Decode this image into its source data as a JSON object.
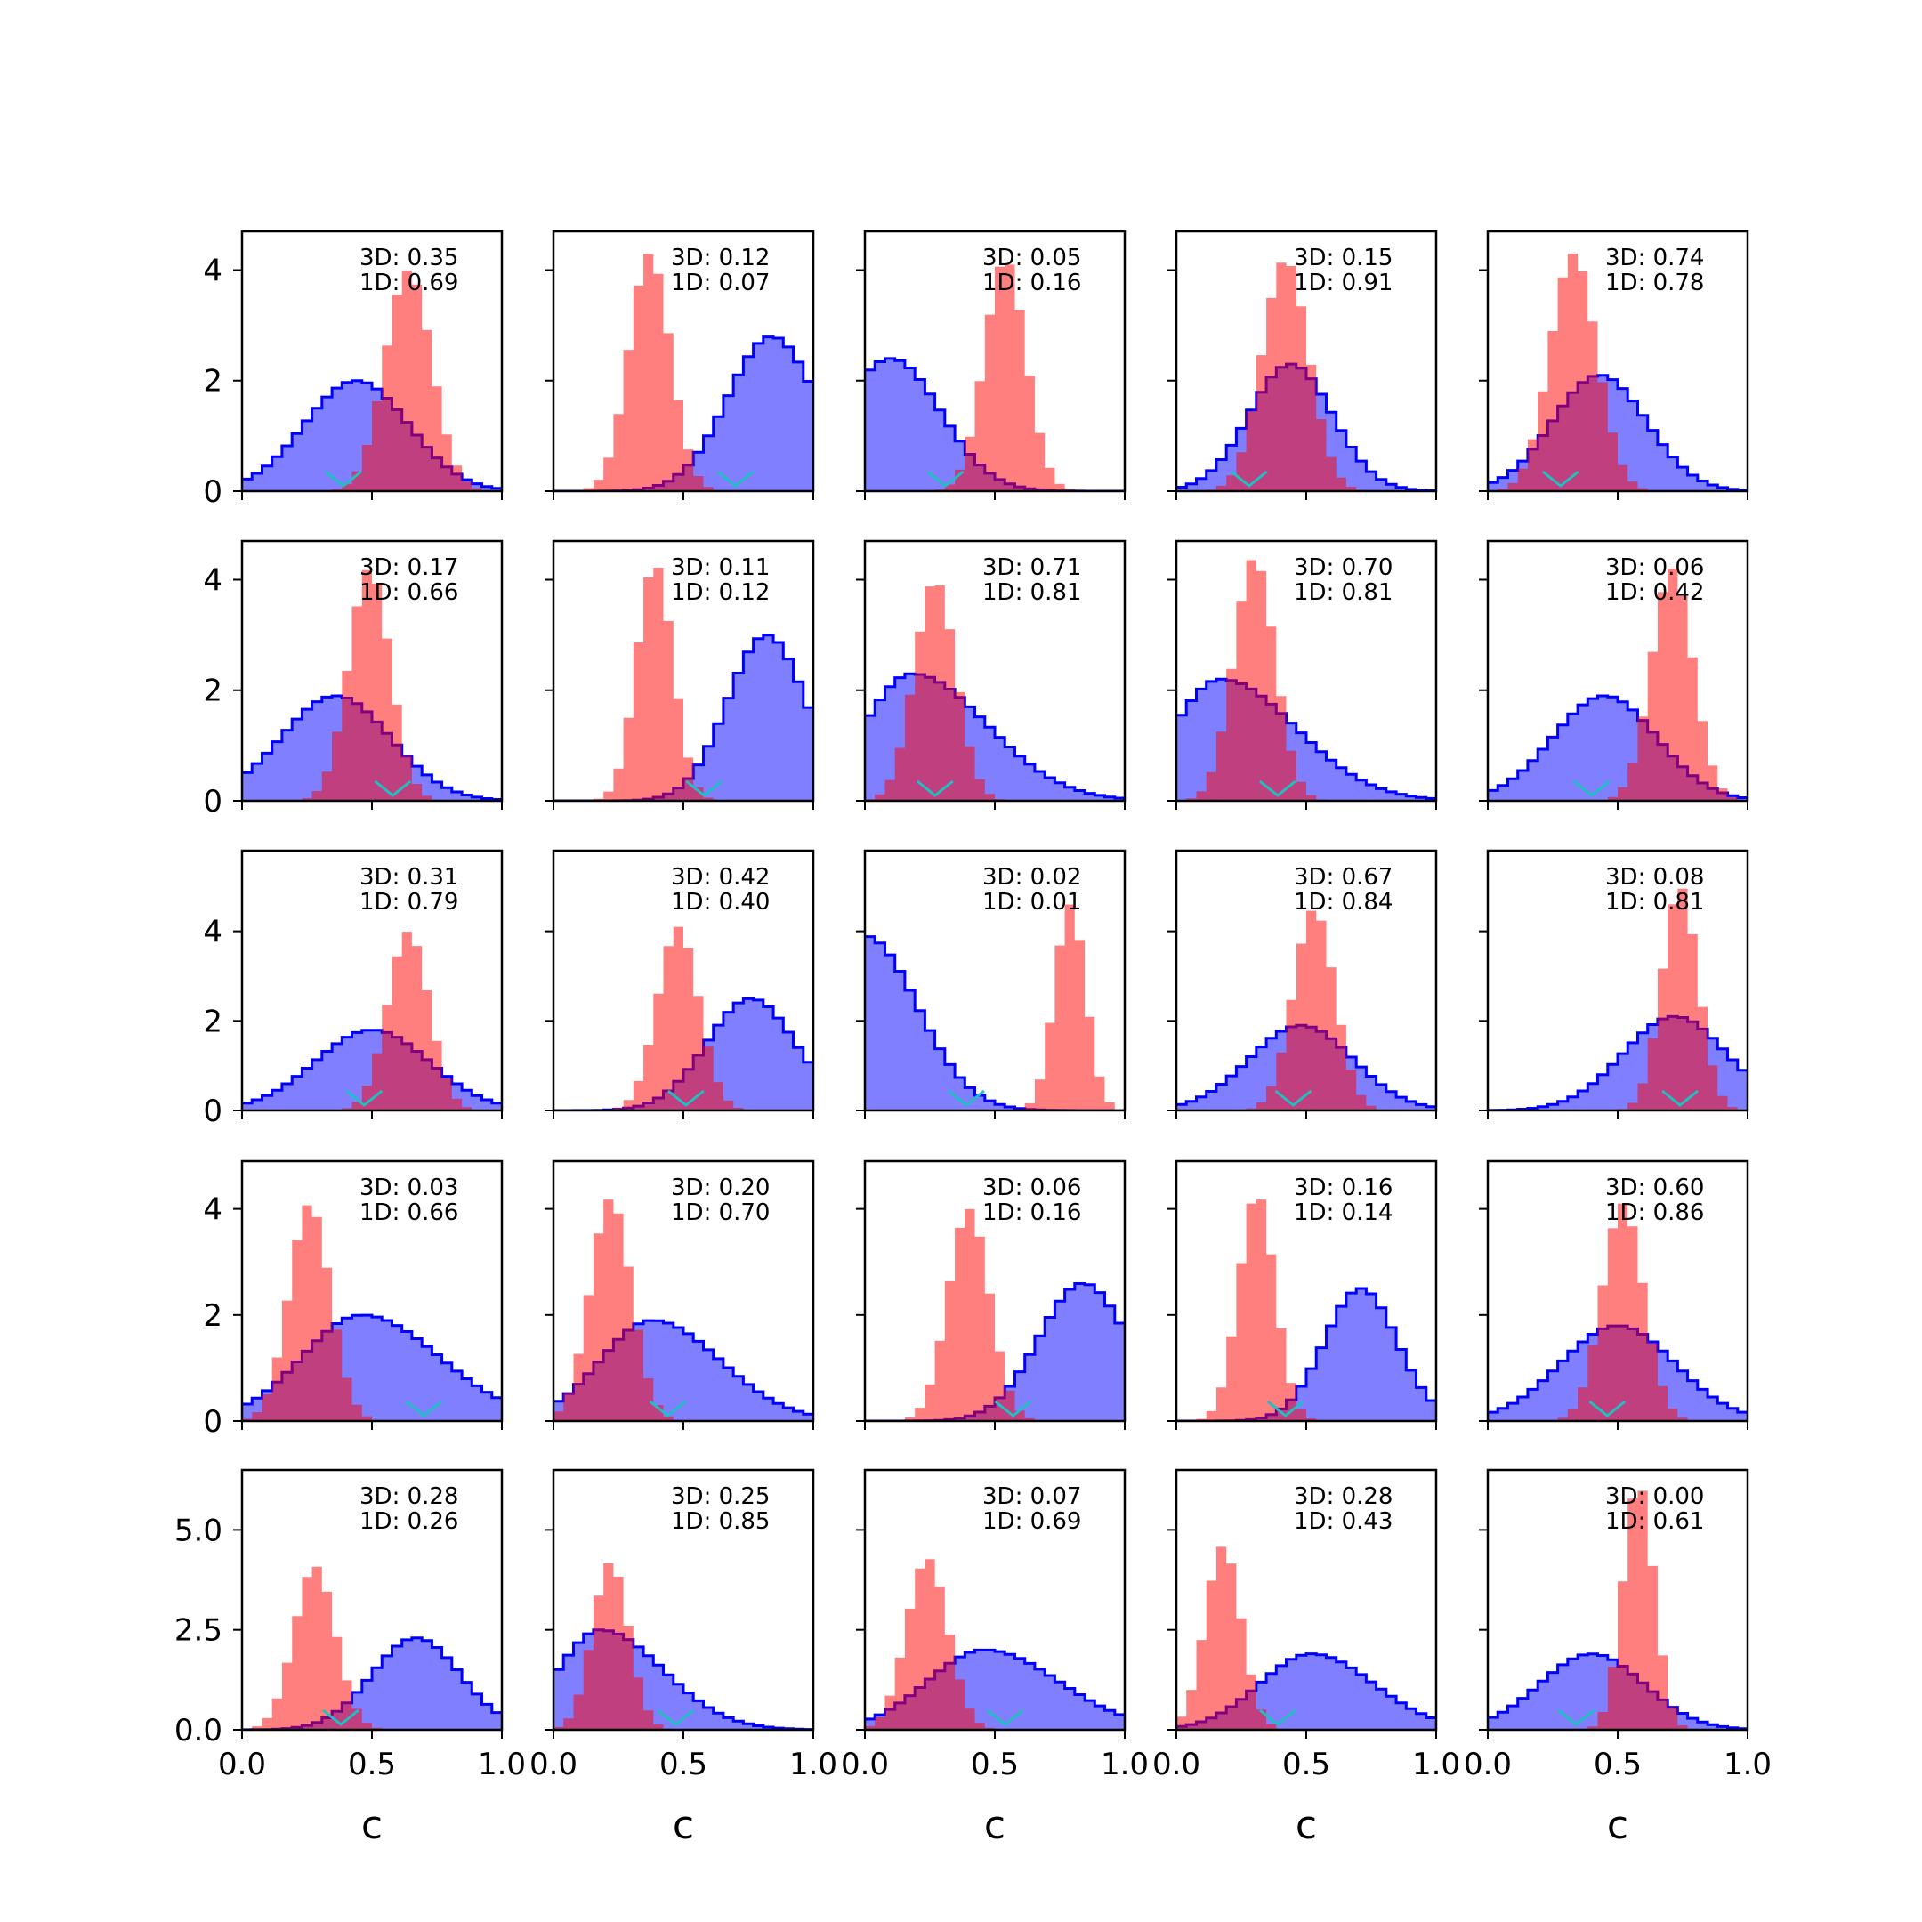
{
  "figure": {
    "xlabel": "c",
    "colors": {
      "broad": "#0000ff",
      "narrow": "#ff0000",
      "marker": "#20c0c0",
      "axes": "#000000"
    }
  },
  "chart_data": [
    {
      "type": "bar",
      "row": 0,
      "col": 0,
      "label3d": "3D: 0.35",
      "label1d": "1D: 0.69",
      "ylim": [
        0,
        4.7
      ],
      "yticks": [
        0,
        2,
        4
      ],
      "xlim": [
        0,
        1
      ],
      "xticks": [
        "0.0",
        "0.5",
        "1.0"
      ],
      "broad": {
        "mu": 0.44,
        "sigma": 0.2,
        "peak": 2.0,
        "skew": 0
      },
      "narrow": {
        "mu": 0.64,
        "sigma": 0.09,
        "peak": 4.0,
        "skew": 0
      },
      "marker": 0.39
    },
    {
      "type": "bar",
      "row": 0,
      "col": 1,
      "label3d": "3D: 0.12",
      "label1d": "1D: 0.07",
      "ylim": [
        0,
        4.7
      ],
      "yticks": [
        0,
        2,
        4
      ],
      "xlim": [
        0,
        1
      ],
      "xticks": [
        "0.0",
        "0.5",
        "1.0"
      ],
      "broad": {
        "mu": 0.84,
        "sigma": 0.17,
        "peak": 2.8,
        "skew": 0
      },
      "narrow": {
        "mu": 0.37,
        "sigma": 0.08,
        "peak": 4.3,
        "skew": 0
      },
      "marker": 0.7
    },
    {
      "type": "bar",
      "row": 0,
      "col": 2,
      "label3d": "3D: 0.05",
      "label1d": "1D: 0.16",
      "ylim": [
        0,
        4.7
      ],
      "yticks": [
        0,
        2,
        4
      ],
      "xlim": [
        0,
        1
      ],
      "xticks": [
        "0.0",
        "0.5",
        "1.0"
      ],
      "broad": {
        "mu": 0.1,
        "sigma": 0.19,
        "peak": 2.4,
        "skew": 0
      },
      "narrow": {
        "mu": 0.54,
        "sigma": 0.08,
        "peak": 4.2,
        "skew": 0
      },
      "marker": 0.31
    },
    {
      "type": "bar",
      "row": 0,
      "col": 3,
      "label3d": "3D: 0.15",
      "label1d": "1D: 0.91",
      "ylim": [
        0,
        4.7
      ],
      "yticks": [
        0,
        2,
        4
      ],
      "xlim": [
        0,
        1
      ],
      "xticks": [
        "0.0",
        "0.5",
        "1.0"
      ],
      "broad": {
        "mu": 0.44,
        "sigma": 0.16,
        "peak": 2.3,
        "skew": 0
      },
      "narrow": {
        "mu": 0.42,
        "sigma": 0.09,
        "peak": 4.2,
        "skew": 0
      },
      "marker": 0.28
    },
    {
      "type": "bar",
      "row": 0,
      "col": 4,
      "label3d": "3D: 0.74",
      "label1d": "1D: 0.78",
      "ylim": [
        0,
        4.7
      ],
      "yticks": [
        0,
        2,
        4
      ],
      "xlim": [
        0,
        1
      ],
      "xticks": [
        "0.0",
        "0.5",
        "1.0"
      ],
      "broad": {
        "mu": 0.43,
        "sigma": 0.18,
        "peak": 2.1,
        "skew": 0
      },
      "narrow": {
        "mu": 0.33,
        "sigma": 0.09,
        "peak": 4.3,
        "skew": 0
      },
      "marker": 0.28
    },
    {
      "type": "bar",
      "row": 1,
      "col": 0,
      "label3d": "3D: 0.17",
      "label1d": "1D: 0.66",
      "ylim": [
        0,
        4.7
      ],
      "yticks": [
        0,
        2,
        4
      ],
      "xlim": [
        0,
        1
      ],
      "xticks": [
        "0.0",
        "0.5",
        "1.0"
      ],
      "broad": {
        "mu": 0.36,
        "sigma": 0.21,
        "peak": 1.9,
        "skew": 0
      },
      "narrow": {
        "mu": 0.49,
        "sigma": 0.08,
        "peak": 4.2,
        "skew": 0
      },
      "marker": 0.58
    },
    {
      "type": "bar",
      "row": 1,
      "col": 1,
      "label3d": "3D: 0.11",
      "label1d": "1D: 0.12",
      "ylim": [
        0,
        4.7
      ],
      "yticks": [
        0,
        2,
        4
      ],
      "xlim": [
        0,
        1
      ],
      "xticks": [
        "0.0",
        "0.5",
        "1.0"
      ],
      "broad": {
        "mu": 0.82,
        "sigma": 0.15,
        "peak": 3.0,
        "skew": 0
      },
      "narrow": {
        "mu": 0.39,
        "sigma": 0.07,
        "peak": 4.3,
        "skew": 0
      },
      "marker": 0.58
    },
    {
      "type": "bar",
      "row": 1,
      "col": 2,
      "label3d": "3D: 0.71",
      "label1d": "1D: 0.81",
      "ylim": [
        0,
        4.7
      ],
      "yticks": [
        0,
        2,
        4
      ],
      "xlim": [
        0,
        1
      ],
      "xticks": [
        "0.0",
        "0.5",
        "1.0"
      ],
      "broad": {
        "mu": 0.18,
        "sigma": 0.18,
        "peak": 2.3,
        "skew": 0.6
      },
      "narrow": {
        "mu": 0.27,
        "sigma": 0.08,
        "peak": 4.0,
        "skew": 0
      },
      "marker": 0.27
    },
    {
      "type": "bar",
      "row": 1,
      "col": 3,
      "label3d": "3D: 0.70",
      "label1d": "1D: 0.81",
      "ylim": [
        0,
        4.7
      ],
      "yticks": [
        0,
        2,
        4
      ],
      "xlim": [
        0,
        1
      ],
      "xticks": [
        "0.0",
        "0.5",
        "1.0"
      ],
      "broad": {
        "mu": 0.17,
        "sigma": 0.18,
        "peak": 2.2,
        "skew": 0.6
      },
      "narrow": {
        "mu": 0.3,
        "sigma": 0.08,
        "peak": 4.4,
        "skew": 0
      },
      "marker": 0.39
    },
    {
      "type": "bar",
      "row": 1,
      "col": 4,
      "label3d": "3D: 0.06",
      "label1d": "1D: 0.42",
      "ylim": [
        0,
        4.7
      ],
      "yticks": [
        0,
        2,
        4
      ],
      "xlim": [
        0,
        1
      ],
      "xticks": [
        "0.0",
        "0.5",
        "1.0"
      ],
      "broad": {
        "mu": 0.45,
        "sigma": 0.2,
        "peak": 1.9,
        "skew": 0
      },
      "narrow": {
        "mu": 0.71,
        "sigma": 0.08,
        "peak": 4.2,
        "skew": 0
      },
      "marker": 0.4
    },
    {
      "type": "bar",
      "row": 2,
      "col": 0,
      "label3d": "3D: 0.31",
      "label1d": "1D: 0.79",
      "ylim": [
        0,
        5.8
      ],
      "yticks": [
        0,
        2,
        4
      ],
      "xlim": [
        0,
        1
      ],
      "xticks": [
        "0.0",
        "0.5",
        "1.0"
      ],
      "broad": {
        "mu": 0.5,
        "sigma": 0.22,
        "peak": 1.8,
        "skew": 0
      },
      "narrow": {
        "mu": 0.64,
        "sigma": 0.08,
        "peak": 4.0,
        "skew": 0
      },
      "marker": 0.47
    },
    {
      "type": "bar",
      "row": 2,
      "col": 1,
      "label3d": "3D: 0.42",
      "label1d": "1D: 0.40",
      "ylim": [
        0,
        5.8
      ],
      "yticks": [
        0,
        2,
        4
      ],
      "xlim": [
        0,
        1
      ],
      "xticks": [
        "0.0",
        "0.5",
        "1.0"
      ],
      "broad": {
        "mu": 0.76,
        "sigma": 0.17,
        "peak": 2.5,
        "skew": 0
      },
      "narrow": {
        "mu": 0.48,
        "sigma": 0.08,
        "peak": 4.1,
        "skew": 0
      },
      "marker": 0.51
    },
    {
      "type": "bar",
      "row": 2,
      "col": 2,
      "label3d": "3D: 0.02",
      "label1d": "1D: 0.01",
      "ylim": [
        0,
        5.8
      ],
      "yticks": [
        0,
        2,
        4
      ],
      "xlim": [
        0,
        1
      ],
      "xticks": [
        "0.0",
        "0.5",
        "1.0"
      ],
      "broad": {
        "mu": 0.0,
        "sigma": 0.2,
        "peak": 3.9,
        "skew": 0
      },
      "narrow": {
        "mu": 0.79,
        "sigma": 0.06,
        "peak": 4.6,
        "skew": 0
      },
      "marker": 0.39
    },
    {
      "type": "bar",
      "row": 2,
      "col": 3,
      "label3d": "3D: 0.67",
      "label1d": "1D: 0.84",
      "ylim": [
        0,
        5.8
      ],
      "yticks": [
        0,
        2,
        4
      ],
      "xlim": [
        0,
        1
      ],
      "xticks": [
        "0.0",
        "0.5",
        "1.0"
      ],
      "broad": {
        "mu": 0.48,
        "sigma": 0.2,
        "peak": 1.9,
        "skew": 0
      },
      "narrow": {
        "mu": 0.53,
        "sigma": 0.08,
        "peak": 4.5,
        "skew": 0
      },
      "marker": 0.45
    },
    {
      "type": "bar",
      "row": 2,
      "col": 4,
      "label3d": "3D: 0.08",
      "label1d": "1D: 0.81",
      "ylim": [
        0,
        5.8
      ],
      "yticks": [
        0,
        2,
        4
      ],
      "xlim": [
        0,
        1
      ],
      "xticks": [
        "0.0",
        "0.5",
        "1.0"
      ],
      "broad": {
        "mu": 0.72,
        "sigma": 0.2,
        "peak": 2.1,
        "skew": 0
      },
      "narrow": {
        "mu": 0.74,
        "sigma": 0.07,
        "peak": 5.0,
        "skew": 0
      },
      "marker": 0.74
    },
    {
      "type": "bar",
      "row": 3,
      "col": 0,
      "label3d": "3D: 0.03",
      "label1d": "1D: 0.66",
      "ylim": [
        0,
        4.9
      ],
      "yticks": [
        0,
        2,
        4
      ],
      "xlim": [
        0,
        1
      ],
      "xticks": [
        "0.0",
        "0.5",
        "1.0"
      ],
      "broad": {
        "mu": 0.46,
        "sigma": 0.23,
        "peak": 2.0,
        "skew": 0.3
      },
      "narrow": {
        "mu": 0.26,
        "sigma": 0.08,
        "peak": 4.1,
        "skew": 0
      },
      "marker": 0.7
    },
    {
      "type": "bar",
      "row": 3,
      "col": 1,
      "label3d": "3D: 0.20",
      "label1d": "1D: 0.70",
      "ylim": [
        0,
        4.9
      ],
      "yticks": [
        0,
        2,
        4
      ],
      "xlim": [
        0,
        1
      ],
      "xticks": [
        "0.0",
        "0.5",
        "1.0"
      ],
      "broad": {
        "mu": 0.38,
        "sigma": 0.2,
        "peak": 1.9,
        "skew": 0.3
      },
      "narrow": {
        "mu": 0.22,
        "sigma": 0.08,
        "peak": 4.2,
        "skew": 0
      },
      "marker": 0.44
    },
    {
      "type": "bar",
      "row": 3,
      "col": 2,
      "label3d": "3D: 0.06",
      "label1d": "1D: 0.16",
      "ylim": [
        0,
        4.9
      ],
      "yticks": [
        0,
        2,
        4
      ],
      "xlim": [
        0,
        1
      ],
      "xticks": [
        "0.0",
        "0.5",
        "1.0"
      ],
      "broad": {
        "mu": 0.84,
        "sigma": 0.17,
        "peak": 2.6,
        "skew": 0
      },
      "narrow": {
        "mu": 0.4,
        "sigma": 0.08,
        "peak": 4.0,
        "skew": 0
      },
      "marker": 0.57
    },
    {
      "type": "bar",
      "row": 3,
      "col": 3,
      "label3d": "3D: 0.16",
      "label1d": "1D: 0.14",
      "ylim": [
        0,
        4.9
      ],
      "yticks": [
        0,
        2,
        4
      ],
      "xlim": [
        0,
        1
      ],
      "xticks": [
        "0.0",
        "0.5",
        "1.0"
      ],
      "broad": {
        "mu": 0.71,
        "sigma": 0.14,
        "peak": 2.5,
        "skew": 0
      },
      "narrow": {
        "mu": 0.31,
        "sigma": 0.07,
        "peak": 4.3,
        "skew": 0
      },
      "marker": 0.42
    },
    {
      "type": "bar",
      "row": 3,
      "col": 4,
      "label3d": "3D: 0.60",
      "label1d": "1D: 0.86",
      "ylim": [
        0,
        4.9
      ],
      "yticks": [
        0,
        2,
        4
      ],
      "xlim": [
        0,
        1
      ],
      "xticks": [
        "0.0",
        "0.5",
        "1.0"
      ],
      "broad": {
        "mu": 0.5,
        "sigma": 0.22,
        "peak": 1.8,
        "skew": 0
      },
      "narrow": {
        "mu": 0.52,
        "sigma": 0.08,
        "peak": 4.1,
        "skew": 0
      },
      "marker": 0.46
    },
    {
      "type": "bar",
      "row": 4,
      "col": 0,
      "label3d": "3D: 0.28",
      "label1d": "1D: 0.26",
      "ylim": [
        0,
        6.5
      ],
      "yticks": [
        "0.0",
        "2.5",
        "5.0"
      ],
      "ytickValues": [
        0,
        2.5,
        5.0
      ],
      "xlim": [
        0,
        1
      ],
      "xticks": [
        "0.0",
        "0.5",
        "1.0"
      ],
      "broad": {
        "mu": 0.67,
        "sigma": 0.17,
        "peak": 2.3,
        "skew": 0
      },
      "narrow": {
        "mu": 0.28,
        "sigma": 0.08,
        "peak": 4.1,
        "skew": 0
      },
      "marker": 0.38
    },
    {
      "type": "bar",
      "row": 4,
      "col": 1,
      "label3d": "3D: 0.25",
      "label1d": "1D: 0.85",
      "ylim": [
        0,
        6.5
      ],
      "yticks": [
        "0.0",
        "2.5",
        "5.0"
      ],
      "ytickValues": [
        0,
        2.5,
        5.0
      ],
      "xlim": [
        0,
        1
      ],
      "xticks": [
        "0.0",
        "0.5",
        "1.0"
      ],
      "broad": {
        "mu": 0.18,
        "sigma": 0.16,
        "peak": 2.5,
        "skew": 0.5
      },
      "narrow": {
        "mu": 0.22,
        "sigma": 0.07,
        "peak": 4.2,
        "skew": 0
      },
      "marker": 0.47
    },
    {
      "type": "bar",
      "row": 4,
      "col": 2,
      "label3d": "3D: 0.07",
      "label1d": "1D: 0.69",
      "ylim": [
        0,
        6.5
      ],
      "yticks": [
        "0.0",
        "2.5",
        "5.0"
      ],
      "ytickValues": [
        0,
        2.5,
        5.0
      ],
      "xlim": [
        0,
        1
      ],
      "xticks": [
        "0.0",
        "0.5",
        "1.0"
      ],
      "broad": {
        "mu": 0.46,
        "sigma": 0.22,
        "peak": 2.0,
        "skew": 0.3
      },
      "narrow": {
        "mu": 0.24,
        "sigma": 0.08,
        "peak": 4.3,
        "skew": 0
      },
      "marker": 0.54
    },
    {
      "type": "bar",
      "row": 4,
      "col": 3,
      "label3d": "3D: 0.28",
      "label1d": "1D: 0.43",
      "ylim": [
        0,
        6.5
      ],
      "yticks": [
        "0.0",
        "2.5",
        "5.0"
      ],
      "ytickValues": [
        0,
        2.5,
        5.0
      ],
      "xlim": [
        0,
        1
      ],
      "xticks": [
        "0.0",
        "0.5",
        "1.0"
      ],
      "broad": {
        "mu": 0.52,
        "sigma": 0.2,
        "peak": 1.9,
        "skew": 0.2
      },
      "narrow": {
        "mu": 0.18,
        "sigma": 0.07,
        "peak": 4.6,
        "skew": 0
      },
      "marker": 0.39
    },
    {
      "type": "bar",
      "row": 4,
      "col": 4,
      "label3d": "3D: 0.00",
      "label1d": "1D: 0.61",
      "ylim": [
        0,
        6.5
      ],
      "yticks": [
        "0.0",
        "2.5",
        "5.0"
      ],
      "ytickValues": [
        0,
        2.5,
        5.0
      ],
      "xlim": [
        0,
        1
      ],
      "xticks": [
        "0.0",
        "0.5",
        "1.0"
      ],
      "broad": {
        "mu": 0.4,
        "sigma": 0.2,
        "peak": 1.9,
        "skew": 0
      },
      "narrow": {
        "mu": 0.58,
        "sigma": 0.06,
        "peak": 6.2,
        "skew": 0
      },
      "marker": 0.34
    }
  ]
}
